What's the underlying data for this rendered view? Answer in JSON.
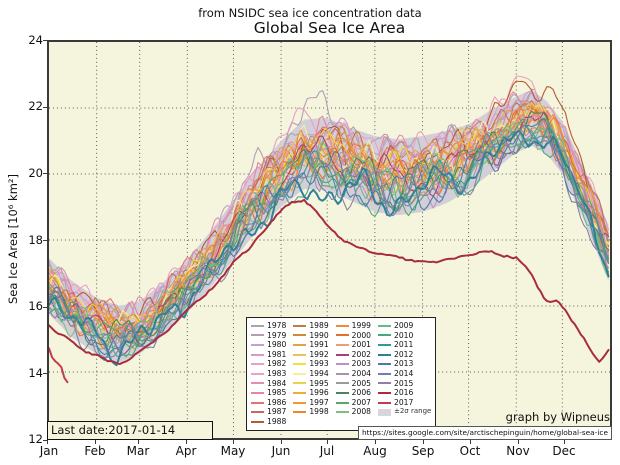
{
  "header": {
    "subtitle": "from NSIDC sea ice concentration data",
    "title": "Global Sea Ice Area"
  },
  "annotations": {
    "last_date": "Last date:2017-01-14",
    "credit": "graph by Wipneus",
    "url": "https://sites.google.com/site/arctischepinguin/home/global-sea-ice"
  },
  "colors": {
    "plot_bg": "#f5f4dc",
    "frame": "#3a3a3a",
    "grid": "#5a5a5a",
    "band_fill": "#d2cfd8"
  },
  "chart_data": {
    "type": "line",
    "title": "Global Sea Ice Area",
    "subtitle": "from NSIDC sea ice concentration data",
    "xlabel": "",
    "ylabel": "Sea Ice Area [10⁶ km²]",
    "ylim": [
      12,
      24
    ],
    "yticks": [
      24,
      22,
      20,
      18,
      16,
      14,
      12
    ],
    "ytick_labels": [
      "24",
      "22",
      "20",
      "18",
      "16",
      "14",
      "12"
    ],
    "grid": "dotted",
    "legend_position": "lower center inside",
    "months": [
      "Jan",
      "Feb",
      "Mar",
      "Apr",
      "May",
      "Jun",
      "Jul",
      "Aug",
      "Sep",
      "Oct",
      "Nov",
      "Dec"
    ],
    "month_start_days": [
      0,
      31,
      59,
      90,
      120,
      151,
      181,
      212,
      243,
      273,
      304,
      334
    ],
    "days_in_year": 365,
    "mean_cycle": {
      "days": [
        0,
        15,
        31,
        46,
        59,
        74,
        90,
        105,
        120,
        135,
        151,
        166,
        181,
        196,
        212,
        227,
        243,
        258,
        273,
        288,
        304,
        314,
        324,
        334,
        349,
        364
      ],
      "values": [
        16.6,
        15.9,
        15.4,
        15.15,
        15.35,
        15.9,
        16.6,
        17.4,
        18.3,
        19.2,
        20.0,
        20.6,
        20.6,
        20.3,
        20.0,
        19.9,
        20.0,
        20.2,
        20.5,
        21.0,
        21.5,
        21.7,
        21.4,
        20.8,
        19.3,
        17.6
      ]
    },
    "band": {
      "label": "±2σ range",
      "fill": "#d2cfd8",
      "half_width": [
        0.85,
        0.85,
        0.85,
        0.85,
        0.8,
        0.8,
        0.8,
        0.85,
        0.9,
        0.95,
        1.0,
        1.05,
        1.1,
        1.1,
        1.15,
        1.15,
        1.15,
        1.1,
        1.0,
        0.95,
        0.85,
        0.85,
        0.8,
        0.8,
        0.8,
        0.85
      ]
    },
    "legend_columns": [
      11,
      10,
      10,
      10
    ],
    "series": [
      {
        "name": "1978",
        "color": "#a6a6a6"
      },
      {
        "name": "1979",
        "color": "#b49cb6",
        "bumps": [
          {
            "day": 168,
            "width": 38,
            "amp": 0.75
          }
        ]
      },
      {
        "name": "1980",
        "color": "#c2a0ca"
      },
      {
        "name": "1981",
        "color": "#d898cc"
      },
      {
        "name": "1982",
        "color": "#ec9ec8",
        "bumps": [
          {
            "day": 150,
            "width": 30,
            "amp": 0.55
          }
        ]
      },
      {
        "name": "1983",
        "color": "#f0a0bc",
        "bumps": [
          {
            "day": 308,
            "width": 28,
            "amp": 0.55
          }
        ]
      },
      {
        "name": "1984",
        "color": "#e88ab2"
      },
      {
        "name": "1985",
        "color": "#e8849e"
      },
      {
        "name": "1986",
        "color": "#e2746e"
      },
      {
        "name": "1987",
        "color": "#cc685a"
      },
      {
        "name": "1988",
        "color": "#b25c30",
        "bumps": [
          {
            "day": 320,
            "width": 32,
            "amp": 1.05
          }
        ]
      },
      {
        "name": "1989",
        "color": "#bc7c42"
      },
      {
        "name": "1990",
        "color": "#cc8a3e"
      },
      {
        "name": "1991",
        "color": "#dfa448"
      },
      {
        "name": "1992",
        "color": "#eac45a"
      },
      {
        "name": "1993",
        "color": "#f2e03c"
      },
      {
        "name": "1994",
        "color": "#f4efa2"
      },
      {
        "name": "1995",
        "color": "#eed04a"
      },
      {
        "name": "1996",
        "color": "#f2aa3c"
      },
      {
        "name": "1997",
        "color": "#ee9a30"
      },
      {
        "name": "1998",
        "color": "#e88828"
      },
      {
        "name": "1999",
        "color": "#ec8c3a"
      },
      {
        "name": "2000",
        "color": "#e2702c"
      },
      {
        "name": "2001",
        "color": "#f09a76"
      },
      {
        "name": "2002",
        "color": "#a6407a"
      },
      {
        "name": "2003",
        "color": "#c48ec4"
      },
      {
        "name": "2004",
        "color": "#aa92aa"
      },
      {
        "name": "2005",
        "color": "#9a9a9a"
      },
      {
        "name": "2006",
        "color": "#4c8656"
      },
      {
        "name": "2007",
        "color": "#5ca46a"
      },
      {
        "name": "2008",
        "color": "#82bc82"
      },
      {
        "name": "2009",
        "color": "#66bc88"
      },
      {
        "name": "2010",
        "color": "#4aa486",
        "bumps": [
          {
            "day": 186,
            "width": 30,
            "amp": -0.55
          }
        ]
      },
      {
        "name": "2011",
        "color": "#329a92"
      },
      {
        "name": "2012",
        "color": "#2e8098",
        "width": 2.0,
        "bumps": [
          {
            "day": 172,
            "width": 42,
            "amp": -0.65
          }
        ]
      },
      {
        "name": "2013",
        "color": "#4e7aa6"
      },
      {
        "name": "2014",
        "color": "#6e80a8"
      },
      {
        "name": "2015",
        "color": "#8c80a4"
      },
      {
        "name": "2016",
        "color": "#a82c3e",
        "width": 2.0,
        "points": {
          "days": [
            0,
            8,
            16,
            24,
            31,
            38,
            46,
            52,
            59,
            70,
            80,
            90,
            100,
            110,
            120,
            130,
            140,
            151,
            158,
            166,
            172,
            181,
            190,
            196,
            205,
            212,
            220,
            227,
            235,
            243,
            251,
            258,
            266,
            273,
            280,
            288,
            295,
            304,
            309,
            314,
            318,
            322,
            326,
            331,
            334,
            340,
            345,
            350,
            355,
            358,
            361,
            364
          ],
          "values": [
            15.4,
            15.15,
            14.85,
            14.6,
            14.5,
            14.35,
            14.3,
            14.4,
            14.6,
            15.0,
            15.4,
            15.9,
            16.2,
            16.7,
            17.3,
            17.7,
            18.3,
            18.9,
            19.1,
            19.2,
            18.95,
            18.4,
            18.0,
            17.85,
            17.7,
            17.6,
            17.5,
            17.45,
            17.35,
            17.3,
            17.35,
            17.4,
            17.5,
            17.5,
            17.6,
            17.65,
            17.55,
            17.5,
            17.3,
            16.9,
            16.5,
            16.2,
            16.1,
            16.15,
            16.0,
            15.6,
            15.25,
            14.9,
            14.55,
            14.4,
            14.5,
            14.7
          ]
        }
      },
      {
        "name": "2017",
        "color": "#c43a4c",
        "width": 2.0,
        "points": {
          "days": [
            0,
            1,
            2,
            3,
            4,
            5,
            6,
            7,
            8,
            9,
            10,
            11,
            12,
            13
          ],
          "values": [
            14.75,
            14.65,
            14.5,
            14.55,
            14.4,
            14.45,
            14.3,
            14.15,
            14.2,
            14.0,
            13.9,
            13.95,
            13.75,
            13.65
          ]
        }
      }
    ]
  }
}
